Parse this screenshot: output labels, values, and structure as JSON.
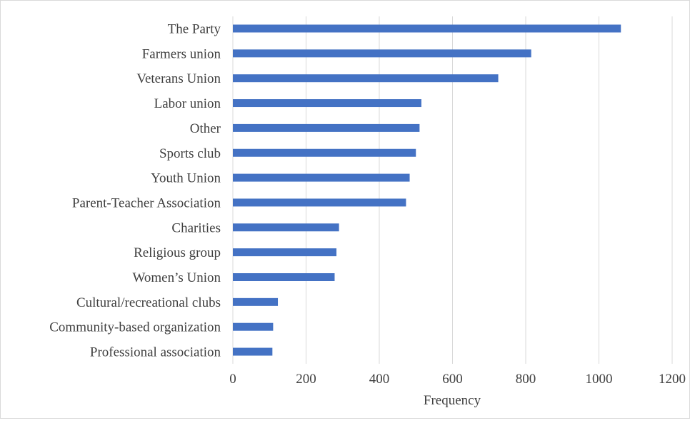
{
  "chart_data": {
    "type": "bar",
    "orientation": "horizontal",
    "categories": [
      "The Party",
      "Farmers union",
      "Veterans Union",
      "Labor union",
      "Other",
      "Sports club",
      "Youth Union",
      "Parent-Teacher Association",
      "Charities",
      "Religious group",
      "Women’s Union",
      "Cultural/recreational clubs",
      "Community-based organization",
      "Professional association"
    ],
    "values": [
      1060,
      815,
      725,
      515,
      510,
      500,
      483,
      473,
      290,
      283,
      278,
      123,
      110,
      108
    ],
    "xlabel": "Frequency",
    "ylabel": "",
    "title": "",
    "xlim": [
      0,
      1200
    ],
    "xticks": [
      "0",
      "200",
      "400",
      "600",
      "800",
      "1000",
      "1200"
    ],
    "grid": "vertical",
    "bar_color": "#4472c4",
    "grid_color": "#d9d9d9"
  }
}
